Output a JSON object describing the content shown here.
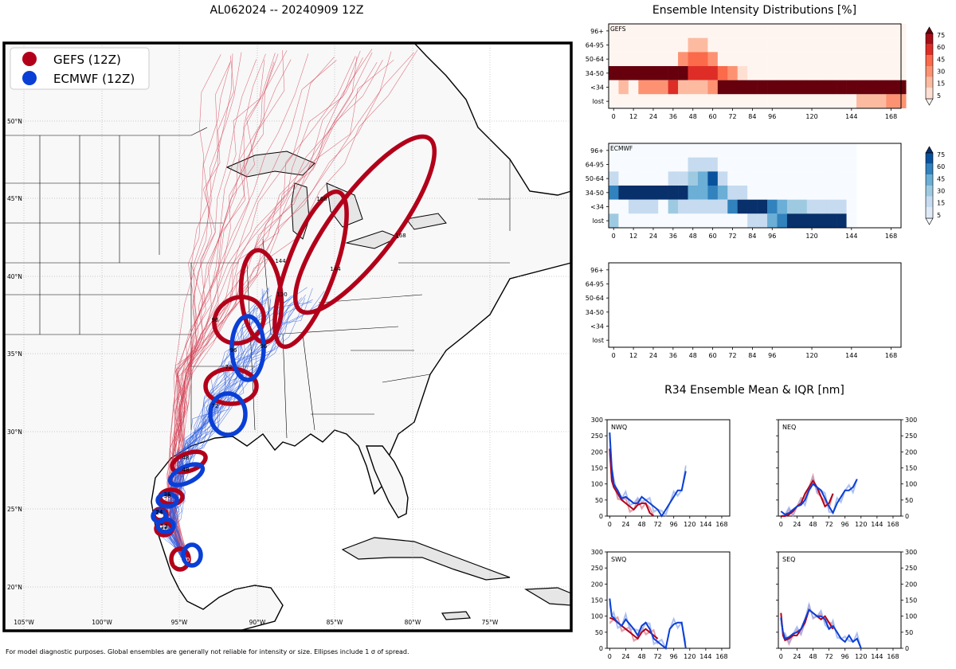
{
  "title": "AL062024 -- 20240909 12Z",
  "right_title": "Ensemble Intensity Distributions [%]",
  "r34_title": "R34 Ensemble Mean & IQR [nm]",
  "footer": "For model diagnostic purposes. Global ensembles are generally not reliable for intensity or size. Ellipses include 1 σ of spread.",
  "map": {
    "lat_labels": [
      "50°N",
      "45°N",
      "40°N",
      "35°N",
      "30°N",
      "25°N",
      "20°N"
    ],
    "lon_labels": [
      "105°W",
      "100°W",
      "95°W",
      "90°W",
      "85°W",
      "80°W",
      "75°W"
    ],
    "legend": [
      {
        "label": "GEFS (12Z)",
        "color": "#b2001a"
      },
      {
        "label": "ECMWF (12Z)",
        "color": "#0a3fd6"
      }
    ],
    "gefs_hours": [
      "0",
      "12",
      "24",
      "36",
      "48",
      "72",
      "96",
      "120",
      "144",
      "144",
      "168",
      "168"
    ],
    "ecmwf_hours": [
      "0",
      "12",
      "24",
      "36",
      "48",
      "72",
      "96",
      "96"
    ]
  },
  "chart_data": [
    {
      "type": "heatmap",
      "name": "GEFS",
      "x_ticks": [
        "0",
        "12",
        "24",
        "36",
        "48",
        "60",
        "72",
        "84",
        "96",
        "120",
        "144",
        "168"
      ],
      "y_labels": [
        "96+",
        "64-95",
        "50-64",
        "34-50",
        "<34",
        "lost"
      ],
      "colormap": "Reds",
      "colorbar_ticks": [
        "75",
        "60",
        "45",
        "30",
        "15",
        "5"
      ],
      "hours": [
        0,
        6,
        12,
        18,
        24,
        30,
        36,
        42,
        48,
        54,
        60,
        66,
        72,
        78,
        84,
        90,
        96,
        102,
        108,
        114,
        120,
        126,
        132,
        138,
        144,
        150,
        156,
        162,
        168,
        174
      ],
      "values": {
        "96+": [
          0,
          0,
          0,
          0,
          0,
          0,
          0,
          0,
          0,
          0,
          0,
          0,
          0,
          0,
          0,
          0,
          0,
          0,
          0,
          0,
          0,
          0,
          0,
          0,
          0,
          0,
          0,
          0,
          0,
          0
        ],
        "64-95": [
          0,
          0,
          0,
          0,
          0,
          0,
          0,
          0,
          15,
          15,
          0,
          0,
          0,
          0,
          0,
          0,
          0,
          0,
          0,
          0,
          0,
          0,
          0,
          0,
          0,
          0,
          0,
          0,
          0,
          0
        ],
        "50-64": [
          0,
          0,
          0,
          0,
          0,
          0,
          0,
          25,
          45,
          35,
          20,
          0,
          0,
          0,
          0,
          0,
          0,
          0,
          0,
          0,
          0,
          0,
          0,
          0,
          0,
          0,
          0,
          0,
          0,
          0
        ],
        "34-50": [
          95,
          95,
          95,
          95,
          95,
          95,
          80,
          80,
          60,
          60,
          60,
          45,
          20,
          5,
          0,
          0,
          0,
          0,
          0,
          0,
          0,
          0,
          0,
          0,
          0,
          0,
          0,
          0,
          0,
          0
        ],
        "<34": [
          0,
          8,
          0,
          30,
          30,
          30,
          50,
          15,
          15,
          15,
          30,
          80,
          95,
          95,
          95,
          95,
          95,
          95,
          95,
          95,
          95,
          95,
          95,
          95,
          95,
          95,
          95,
          95,
          95,
          95
        ],
        "lost": [
          0,
          0,
          0,
          0,
          0,
          0,
          0,
          0,
          0,
          0,
          0,
          0,
          0,
          0,
          0,
          0,
          0,
          0,
          0,
          0,
          0,
          0,
          0,
          0,
          0,
          10,
          10,
          10,
          30,
          30
        ]
      }
    },
    {
      "type": "heatmap",
      "name": "ECMWF",
      "x_ticks": [
        "0",
        "12",
        "24",
        "36",
        "48",
        "60",
        "72",
        "84",
        "96",
        "120",
        "144",
        "168"
      ],
      "y_labels": [
        "96+",
        "64-95",
        "50-64",
        "34-50",
        "<34",
        "lost"
      ],
      "colormap": "Blues",
      "colorbar_ticks": [
        "75",
        "60",
        "45",
        "30",
        "15",
        "5"
      ],
      "hours": [
        0,
        6,
        12,
        18,
        24,
        30,
        36,
        42,
        48,
        54,
        60,
        66,
        72,
        78,
        84,
        90,
        96,
        102,
        108,
        114,
        120,
        126,
        132,
        138,
        144
      ],
      "values": {
        "96+": [
          0,
          0,
          0,
          0,
          0,
          0,
          0,
          0,
          0,
          0,
          0,
          0,
          0,
          0,
          0,
          0,
          0,
          0,
          0,
          0,
          0,
          0,
          0,
          0,
          0
        ],
        "64-95": [
          0,
          0,
          0,
          0,
          0,
          0,
          0,
          0,
          10,
          10,
          10,
          0,
          0,
          0,
          0,
          0,
          0,
          0,
          0,
          0,
          0,
          0,
          0,
          0,
          0
        ],
        "50-64": [
          8,
          0,
          0,
          0,
          0,
          0,
          8,
          8,
          25,
          40,
          70,
          8,
          0,
          0,
          0,
          0,
          0,
          0,
          0,
          0,
          0,
          0,
          0,
          0,
          0
        ],
        "34-50": [
          60,
          95,
          95,
          95,
          95,
          95,
          80,
          80,
          35,
          35,
          50,
          35,
          15,
          8,
          0,
          0,
          0,
          0,
          0,
          0,
          0,
          0,
          0,
          0,
          0
        ],
        "<34": [
          0,
          0,
          8,
          10,
          10,
          0,
          30,
          8,
          8,
          8,
          8,
          8,
          50,
          95,
          95,
          80,
          60,
          40,
          25,
          25,
          8,
          8,
          8,
          8,
          0
        ],
        "lost": [
          30,
          0,
          0,
          0,
          0,
          0,
          0,
          0,
          0,
          0,
          0,
          0,
          0,
          0,
          8,
          8,
          40,
          60,
          80,
          95,
          95,
          95,
          95,
          95,
          0
        ]
      }
    },
    {
      "type": "heatmap",
      "name": "(empty)",
      "x_ticks": [
        "0",
        "12",
        "24",
        "36",
        "48",
        "60",
        "72",
        "84",
        "96",
        "120",
        "144",
        "168"
      ],
      "y_labels": [
        "96+",
        "64-95",
        "50-64",
        "34-50",
        "<34",
        "lost"
      ],
      "values": {}
    },
    {
      "type": "line",
      "name": "NWQ",
      "x_ticks": [
        "0",
        "24",
        "48",
        "72",
        "96",
        "120",
        "144",
        "168"
      ],
      "ylim": [
        0,
        300
      ],
      "y_ticks": [
        "0",
        "50",
        "100",
        "150",
        "200",
        "250",
        "300"
      ],
      "series": [
        {
          "name": "GEFS mean",
          "color": "#b2001a",
          "x": [
            0,
            3,
            6,
            12,
            18,
            24,
            30,
            36,
            42,
            48,
            54,
            60,
            66
          ],
          "y": [
            210,
            110,
            90,
            70,
            50,
            40,
            30,
            20,
            35,
            40,
            40,
            10,
            0
          ]
        },
        {
          "name": "ECMWF mean",
          "color": "#0a3fd6",
          "x": [
            0,
            3,
            6,
            12,
            18,
            24,
            30,
            36,
            42,
            48,
            54,
            60,
            66,
            72,
            78,
            84,
            90,
            96,
            102,
            108,
            114
          ],
          "y": [
            260,
            150,
            100,
            80,
            55,
            60,
            50,
            40,
            40,
            60,
            50,
            40,
            30,
            20,
            0,
            20,
            40,
            60,
            80,
            80,
            140
          ]
        }
      ]
    },
    {
      "type": "line",
      "name": "NEQ",
      "x_ticks": [
        "0",
        "24",
        "48",
        "72",
        "96",
        "120",
        "144",
        "168"
      ],
      "ylim": [
        0,
        300
      ],
      "y_ticks": [
        "0",
        "50",
        "100",
        "150",
        "200",
        "250",
        "300"
      ],
      "series": [
        {
          "name": "GEFS mean",
          "color": "#b2001a",
          "x": [
            0,
            6,
            12,
            18,
            24,
            30,
            36,
            42,
            48,
            54,
            60,
            66,
            72,
            78
          ],
          "y": [
            0,
            0,
            5,
            15,
            30,
            40,
            70,
            90,
            110,
            90,
            60,
            30,
            40,
            70
          ]
        },
        {
          "name": "ECMWF mean",
          "color": "#0a3fd6",
          "x": [
            0,
            6,
            12,
            18,
            24,
            30,
            36,
            42,
            48,
            54,
            60,
            66,
            72,
            78,
            84,
            90,
            96,
            102,
            108,
            114
          ],
          "y": [
            15,
            5,
            10,
            20,
            30,
            35,
            50,
            80,
            100,
            90,
            80,
            55,
            30,
            10,
            40,
            60,
            80,
            80,
            90,
            115
          ]
        }
      ]
    },
    {
      "type": "line",
      "name": "SWQ",
      "x_ticks": [
        "0",
        "24",
        "48",
        "72",
        "96",
        "120",
        "144",
        "168"
      ],
      "ylim": [
        0,
        300
      ],
      "y_ticks": [
        "0",
        "50",
        "100",
        "150",
        "200",
        "250",
        "300"
      ],
      "series": [
        {
          "name": "GEFS mean",
          "color": "#b2001a",
          "x": [
            0,
            6,
            12,
            18,
            24,
            30,
            36,
            42,
            48,
            54,
            60,
            66,
            72
          ],
          "y": [
            95,
            90,
            80,
            70,
            60,
            50,
            40,
            30,
            50,
            60,
            50,
            40,
            30
          ]
        },
        {
          "name": "ECMWF mean",
          "color": "#0a3fd6",
          "x": [
            0,
            3,
            6,
            12,
            18,
            24,
            30,
            36,
            42,
            48,
            54,
            60,
            66,
            72,
            78,
            84,
            90,
            96,
            102,
            108,
            114
          ],
          "y": [
            155,
            100,
            95,
            80,
            70,
            90,
            75,
            60,
            40,
            70,
            80,
            60,
            30,
            20,
            10,
            0,
            60,
            75,
            80,
            80,
            0
          ]
        }
      ]
    },
    {
      "type": "line",
      "name": "SEQ",
      "x_ticks": [
        "0",
        "24",
        "48",
        "72",
        "96",
        "120",
        "144",
        "168"
      ],
      "ylim": [
        0,
        300
      ],
      "y_ticks": [
        "0",
        "50",
        "100",
        "150",
        "200",
        "250",
        "300"
      ],
      "series": [
        {
          "name": "GEFS mean",
          "color": "#b2001a",
          "x": [
            0,
            3,
            6,
            12,
            18,
            24,
            30,
            36,
            42,
            48,
            54,
            60,
            66,
            72,
            78
          ],
          "y": [
            110,
            40,
            25,
            30,
            40,
            40,
            60,
            80,
            120,
            110,
            100,
            90,
            100,
            80,
            60
          ]
        },
        {
          "name": "ECMWF mean",
          "color": "#0a3fd6",
          "x": [
            0,
            3,
            6,
            12,
            18,
            24,
            30,
            36,
            42,
            48,
            54,
            60,
            66,
            72,
            78,
            84,
            90,
            96,
            102,
            108,
            114,
            120
          ],
          "y": [
            95,
            50,
            30,
            35,
            45,
            50,
            60,
            90,
            120,
            110,
            100,
            100,
            90,
            60,
            70,
            50,
            30,
            20,
            40,
            20,
            30,
            0
          ]
        }
      ]
    }
  ]
}
